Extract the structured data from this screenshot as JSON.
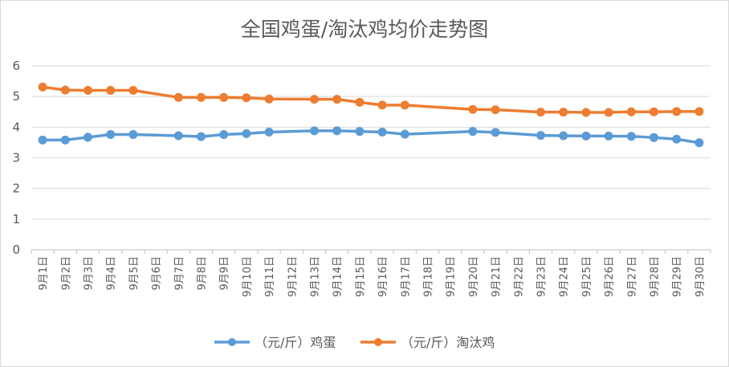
{
  "chart_data": {
    "type": "line",
    "title": "全国鸡蛋/淘汰鸡均价走势图",
    "categories": [
      "9月1日",
      "9月2日",
      "9月3日",
      "9月4日",
      "9月5日",
      "9月6日",
      "9月7日",
      "9月8日",
      "9月9日",
      "9月10日",
      "9月11日",
      "9月12日",
      "9月13日",
      "9月14日",
      "9月15日",
      "9月16日",
      "9月17日",
      "9月18日",
      "9月19日",
      "9月20日",
      "9月21日",
      "9月22日",
      "9月23日",
      "9月24日",
      "9月25日",
      "9月26日",
      "9月27日",
      "9月28日",
      "9月29日",
      "9月30日"
    ],
    "ylim": [
      0,
      6
    ],
    "yticks": [
      "0",
      "1",
      "2",
      "3",
      "4",
      "5",
      "6"
    ],
    "grid": true,
    "legend_position": "bottom",
    "series": [
      {
        "name": "（元/斤）鸡蛋",
        "color": "#5b9bd5",
        "values": [
          3.58,
          3.58,
          3.67,
          3.76,
          3.76,
          null,
          3.72,
          3.69,
          3.76,
          3.79,
          3.84,
          null,
          3.88,
          3.88,
          3.86,
          3.84,
          3.77,
          null,
          null,
          3.86,
          3.83,
          null,
          3.73,
          3.72,
          3.71,
          3.71,
          3.7,
          3.66,
          3.61,
          3.49
        ]
      },
      {
        "name": "（元/斤）淘汰鸡",
        "color": "#ed7d31",
        "values": [
          5.31,
          5.21,
          5.2,
          5.2,
          5.2,
          null,
          4.97,
          4.97,
          4.97,
          4.96,
          4.92,
          null,
          4.91,
          4.91,
          4.81,
          4.72,
          4.72,
          null,
          null,
          4.58,
          4.57,
          null,
          4.49,
          4.49,
          4.48,
          4.48,
          4.5,
          4.5,
          4.51,
          4.51
        ]
      }
    ]
  }
}
